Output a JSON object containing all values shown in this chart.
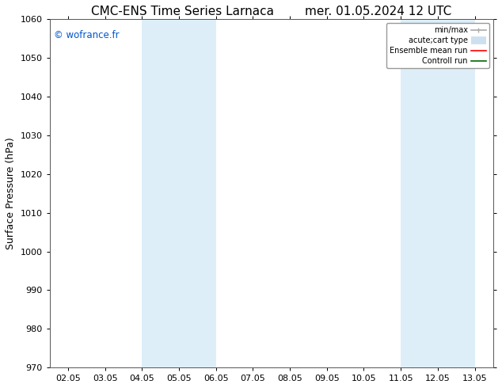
{
  "title_left": "CMC-ENS Time Series Larnaca",
  "title_right": "mer. 01.05.2024 12 UTC",
  "ylabel": "Surface Pressure (hPa)",
  "ylim": [
    970,
    1060
  ],
  "yticks": [
    970,
    980,
    990,
    1000,
    1010,
    1020,
    1030,
    1040,
    1050,
    1060
  ],
  "xtick_labels": [
    "02.05",
    "03.05",
    "04.05",
    "05.05",
    "06.05",
    "07.05",
    "08.05",
    "09.05",
    "10.05",
    "11.05",
    "12.05",
    "13.05"
  ],
  "xtick_positions": [
    0,
    1,
    2,
    3,
    4,
    5,
    6,
    7,
    8,
    9,
    10,
    11
  ],
  "xlim": [
    -0.5,
    11.5
  ],
  "shaded_bands": [
    {
      "xmin": 2.0,
      "xmax": 4.0,
      "color": "#ddeef8"
    },
    {
      "xmin": 9.0,
      "xmax": 11.0,
      "color": "#ddeef8"
    }
  ],
  "watermark": "© wofrance.fr",
  "watermark_color": "#0055cc",
  "legend_items": [
    {
      "label": "min/max",
      "color": "#aaaaaa",
      "lw": 1.2
    },
    {
      "label": "acute;cart type",
      "color": "#cce0f0",
      "lw": 7
    },
    {
      "label": "Ensemble mean run",
      "color": "#ff0000",
      "lw": 1.2
    },
    {
      "label": "Controll run",
      "color": "#006600",
      "lw": 1.2
    }
  ],
  "bg_color": "#ffffff",
  "spine_color": "#555555",
  "title_fontsize": 11,
  "label_fontsize": 9,
  "tick_fontsize": 8
}
